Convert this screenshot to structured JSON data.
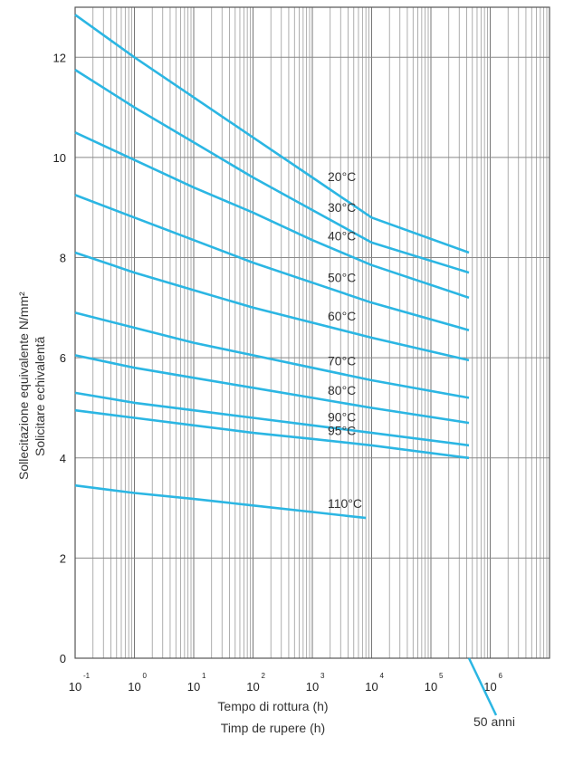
{
  "chart_data": {
    "type": "line",
    "xscale": "log",
    "xlim": [
      0.1,
      10000000
    ],
    "ylim": [
      0,
      13
    ],
    "y_ticks": [
      "0",
      "2",
      "4",
      "6",
      "8",
      "10",
      "12"
    ],
    "x_ticks": [
      {
        "value": 0.1,
        "base": "10",
        "exp": "-1"
      },
      {
        "value": 1,
        "base": "10",
        "exp": "0"
      },
      {
        "value": 10,
        "base": "10",
        "exp": "1"
      },
      {
        "value": 100,
        "base": "10",
        "exp": "2"
      },
      {
        "value": 1000,
        "base": "10",
        "exp": "3"
      },
      {
        "value": 10000,
        "base": "10",
        "exp": "4"
      },
      {
        "value": 100000,
        "base": "10",
        "exp": "5"
      },
      {
        "value": 1000000,
        "base": "10",
        "exp": "6"
      }
    ],
    "grid": true,
    "xlabel": [
      "Tempo di rottura (h)",
      "Timp de rupere (h)"
    ],
    "ylabel": [
      "Sollecitazione equivalente N/mm²",
      "Solicitare echivalentă"
    ],
    "annotation": {
      "text": "50 anni",
      "x": 438000
    },
    "line_color": "#2bb6e3",
    "series": [
      {
        "name": "20°C",
        "points": [
          [
            0.1,
            12.85
          ],
          [
            1,
            12.0
          ],
          [
            10,
            11.2
          ],
          [
            100,
            10.4
          ],
          [
            1000,
            9.6
          ],
          [
            10000,
            8.8
          ],
          [
            438000,
            8.1
          ]
        ]
      },
      {
        "name": "30°C",
        "points": [
          [
            0.1,
            11.75
          ],
          [
            1,
            11.0
          ],
          [
            10,
            10.3
          ],
          [
            100,
            9.6
          ],
          [
            1000,
            8.95
          ],
          [
            10000,
            8.3
          ],
          [
            438000,
            7.7
          ]
        ]
      },
      {
        "name": "40°C",
        "points": [
          [
            0.1,
            10.5
          ],
          [
            1,
            9.95
          ],
          [
            10,
            9.4
          ],
          [
            100,
            8.9
          ],
          [
            1000,
            8.35
          ],
          [
            10000,
            7.85
          ],
          [
            438000,
            7.2
          ]
        ]
      },
      {
        "name": "50°C",
        "points": [
          [
            0.1,
            9.25
          ],
          [
            1,
            8.8
          ],
          [
            10,
            8.35
          ],
          [
            100,
            7.9
          ],
          [
            1000,
            7.5
          ],
          [
            10000,
            7.1
          ],
          [
            438000,
            6.55
          ]
        ]
      },
      {
        "name": "60°C",
        "points": [
          [
            0.1,
            8.1
          ],
          [
            1,
            7.7
          ],
          [
            10,
            7.35
          ],
          [
            100,
            7.0
          ],
          [
            1000,
            6.7
          ],
          [
            10000,
            6.4
          ],
          [
            438000,
            5.95
          ]
        ]
      },
      {
        "name": "70°C",
        "points": [
          [
            0.1,
            6.9
          ],
          [
            1,
            6.6
          ],
          [
            10,
            6.3
          ],
          [
            100,
            6.05
          ],
          [
            1000,
            5.8
          ],
          [
            10000,
            5.55
          ],
          [
            438000,
            5.2
          ]
        ]
      },
      {
        "name": "80°C",
        "points": [
          [
            0.1,
            6.05
          ],
          [
            1,
            5.8
          ],
          [
            10,
            5.6
          ],
          [
            100,
            5.4
          ],
          [
            1000,
            5.2
          ],
          [
            10000,
            5.0
          ],
          [
            438000,
            4.7
          ]
        ]
      },
      {
        "name": "90°C",
        "points": [
          [
            0.1,
            5.3
          ],
          [
            1,
            5.1
          ],
          [
            10,
            4.95
          ],
          [
            100,
            4.8
          ],
          [
            1000,
            4.65
          ],
          [
            10000,
            4.5
          ],
          [
            438000,
            4.25
          ]
        ]
      },
      {
        "name": "95°C",
        "points": [
          [
            0.1,
            4.95
          ],
          [
            1,
            4.8
          ],
          [
            10,
            4.65
          ],
          [
            100,
            4.5
          ],
          [
            1000,
            4.38
          ],
          [
            10000,
            4.25
          ],
          [
            438000,
            4.0
          ]
        ]
      },
      {
        "name": "110°C",
        "points": [
          [
            0.1,
            3.45
          ],
          [
            1,
            3.3
          ],
          [
            10,
            3.18
          ],
          [
            100,
            3.05
          ],
          [
            1000,
            2.92
          ],
          [
            8000,
            2.8
          ]
        ]
      }
    ]
  }
}
